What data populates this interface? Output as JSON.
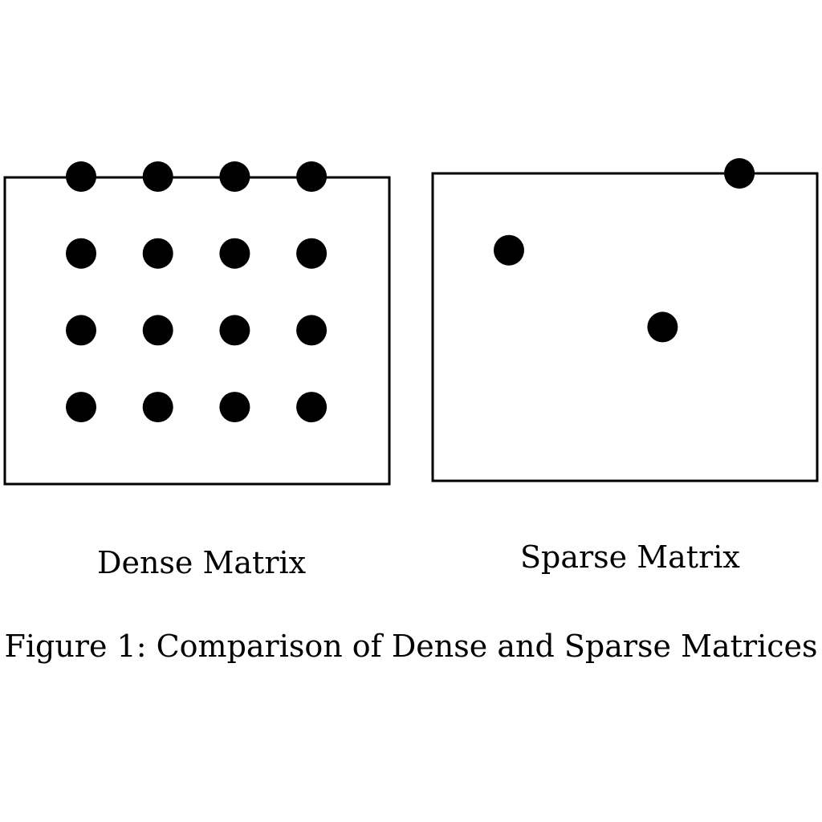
{
  "dense_matrix": {
    "label": "Dense Matrix",
    "rows": 4,
    "cols": 4,
    "nonzero": [
      [
        0,
        0
      ],
      [
        0,
        1
      ],
      [
        0,
        2
      ],
      [
        0,
        3
      ],
      [
        1,
        0
      ],
      [
        1,
        1
      ],
      [
        1,
        2
      ],
      [
        1,
        3
      ],
      [
        2,
        0
      ],
      [
        2,
        1
      ],
      [
        2,
        2
      ],
      [
        2,
        3
      ],
      [
        3,
        0
      ],
      [
        3,
        1
      ],
      [
        3,
        2
      ],
      [
        3,
        3
      ]
    ]
  },
  "sparse_matrix": {
    "label": "Sparse Matrix",
    "rows": 4,
    "cols": 4,
    "nonzero": [
      [
        0,
        3
      ],
      [
        1,
        0
      ],
      [
        2,
        2
      ]
    ]
  },
  "caption": "Figure 1: Comparison of Dense and Sparse Matrices",
  "colors": {
    "dot": "#000000",
    "frame": "#000000",
    "background": "#ffffff"
  }
}
